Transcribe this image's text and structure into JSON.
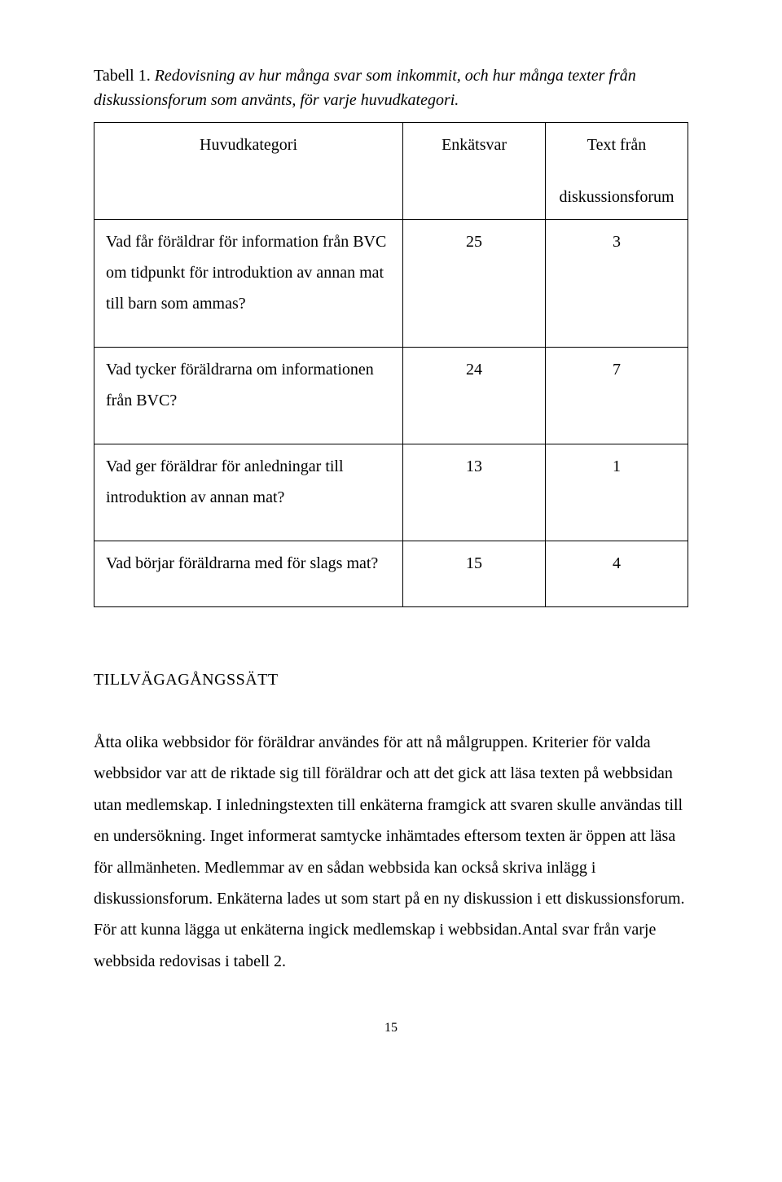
{
  "caption": {
    "lead": "Tabell 1.",
    "rest": "Redovisning av hur många svar som inkommit, och hur många texter från diskussionsforum som använts, för varje huvudkategori."
  },
  "table": {
    "type": "table",
    "columns": [
      {
        "label": "Huvudkategori",
        "align": "center",
        "width_pct": 52
      },
      {
        "label": "Enkätsvar",
        "align": "center",
        "width_pct": 24
      },
      {
        "label_line1": "Text från",
        "label_line2": "diskussionsforum",
        "align": "center",
        "width_pct": 24
      }
    ],
    "rows": [
      {
        "label": "Vad får föräldrar för information från BVC om tidpunkt för introduktion av annan mat till barn som ammas?",
        "col2": "25",
        "col3": "3"
      },
      {
        "label": "Vad tycker föräldrarna om informationen från BVC?",
        "col2": "24",
        "col3": "7"
      },
      {
        "label": "Vad ger föräldrar för anledningar till introduktion av annan mat?",
        "col2": "13",
        "col3": "1"
      },
      {
        "label": "Vad börjar föräldrarna med för slags mat?",
        "col2": "15",
        "col3": "4"
      }
    ],
    "border_color": "#000000",
    "background_color": "#ffffff",
    "font_size_pt": 15,
    "cell_line_height": 1.9
  },
  "section_heading": "TILLVÄGAGÅNGSSÄTT",
  "body_text": "Åtta olika webbsidor för föräldrar användes för att nå målgruppen. Kriterier för valda webbsidor var att de riktade sig till föräldrar och att det gick att läsa texten på webbsidan utan medlemskap. I inledningstexten till enkäterna framgick att svaren skulle användas till en undersökning. Inget informerat samtycke inhämtades eftersom texten är öppen att läsa för allmänheten. Medlemmar av en sådan webbsida kan också skriva inlägg i diskussionsforum. Enkäterna lades ut som start på en ny diskussion i ett diskussionsforum. För att kunna lägga ut enkäterna ingick medlemskap i webbsidan.Antal svar från varje webbsida redovisas i tabell 2.",
  "page_number": "15",
  "colors": {
    "text": "#000000",
    "background": "#ffffff",
    "border": "#000000"
  },
  "typography": {
    "font_family": "Times New Roman",
    "body_size_pt": 15,
    "caption_italic": true
  }
}
